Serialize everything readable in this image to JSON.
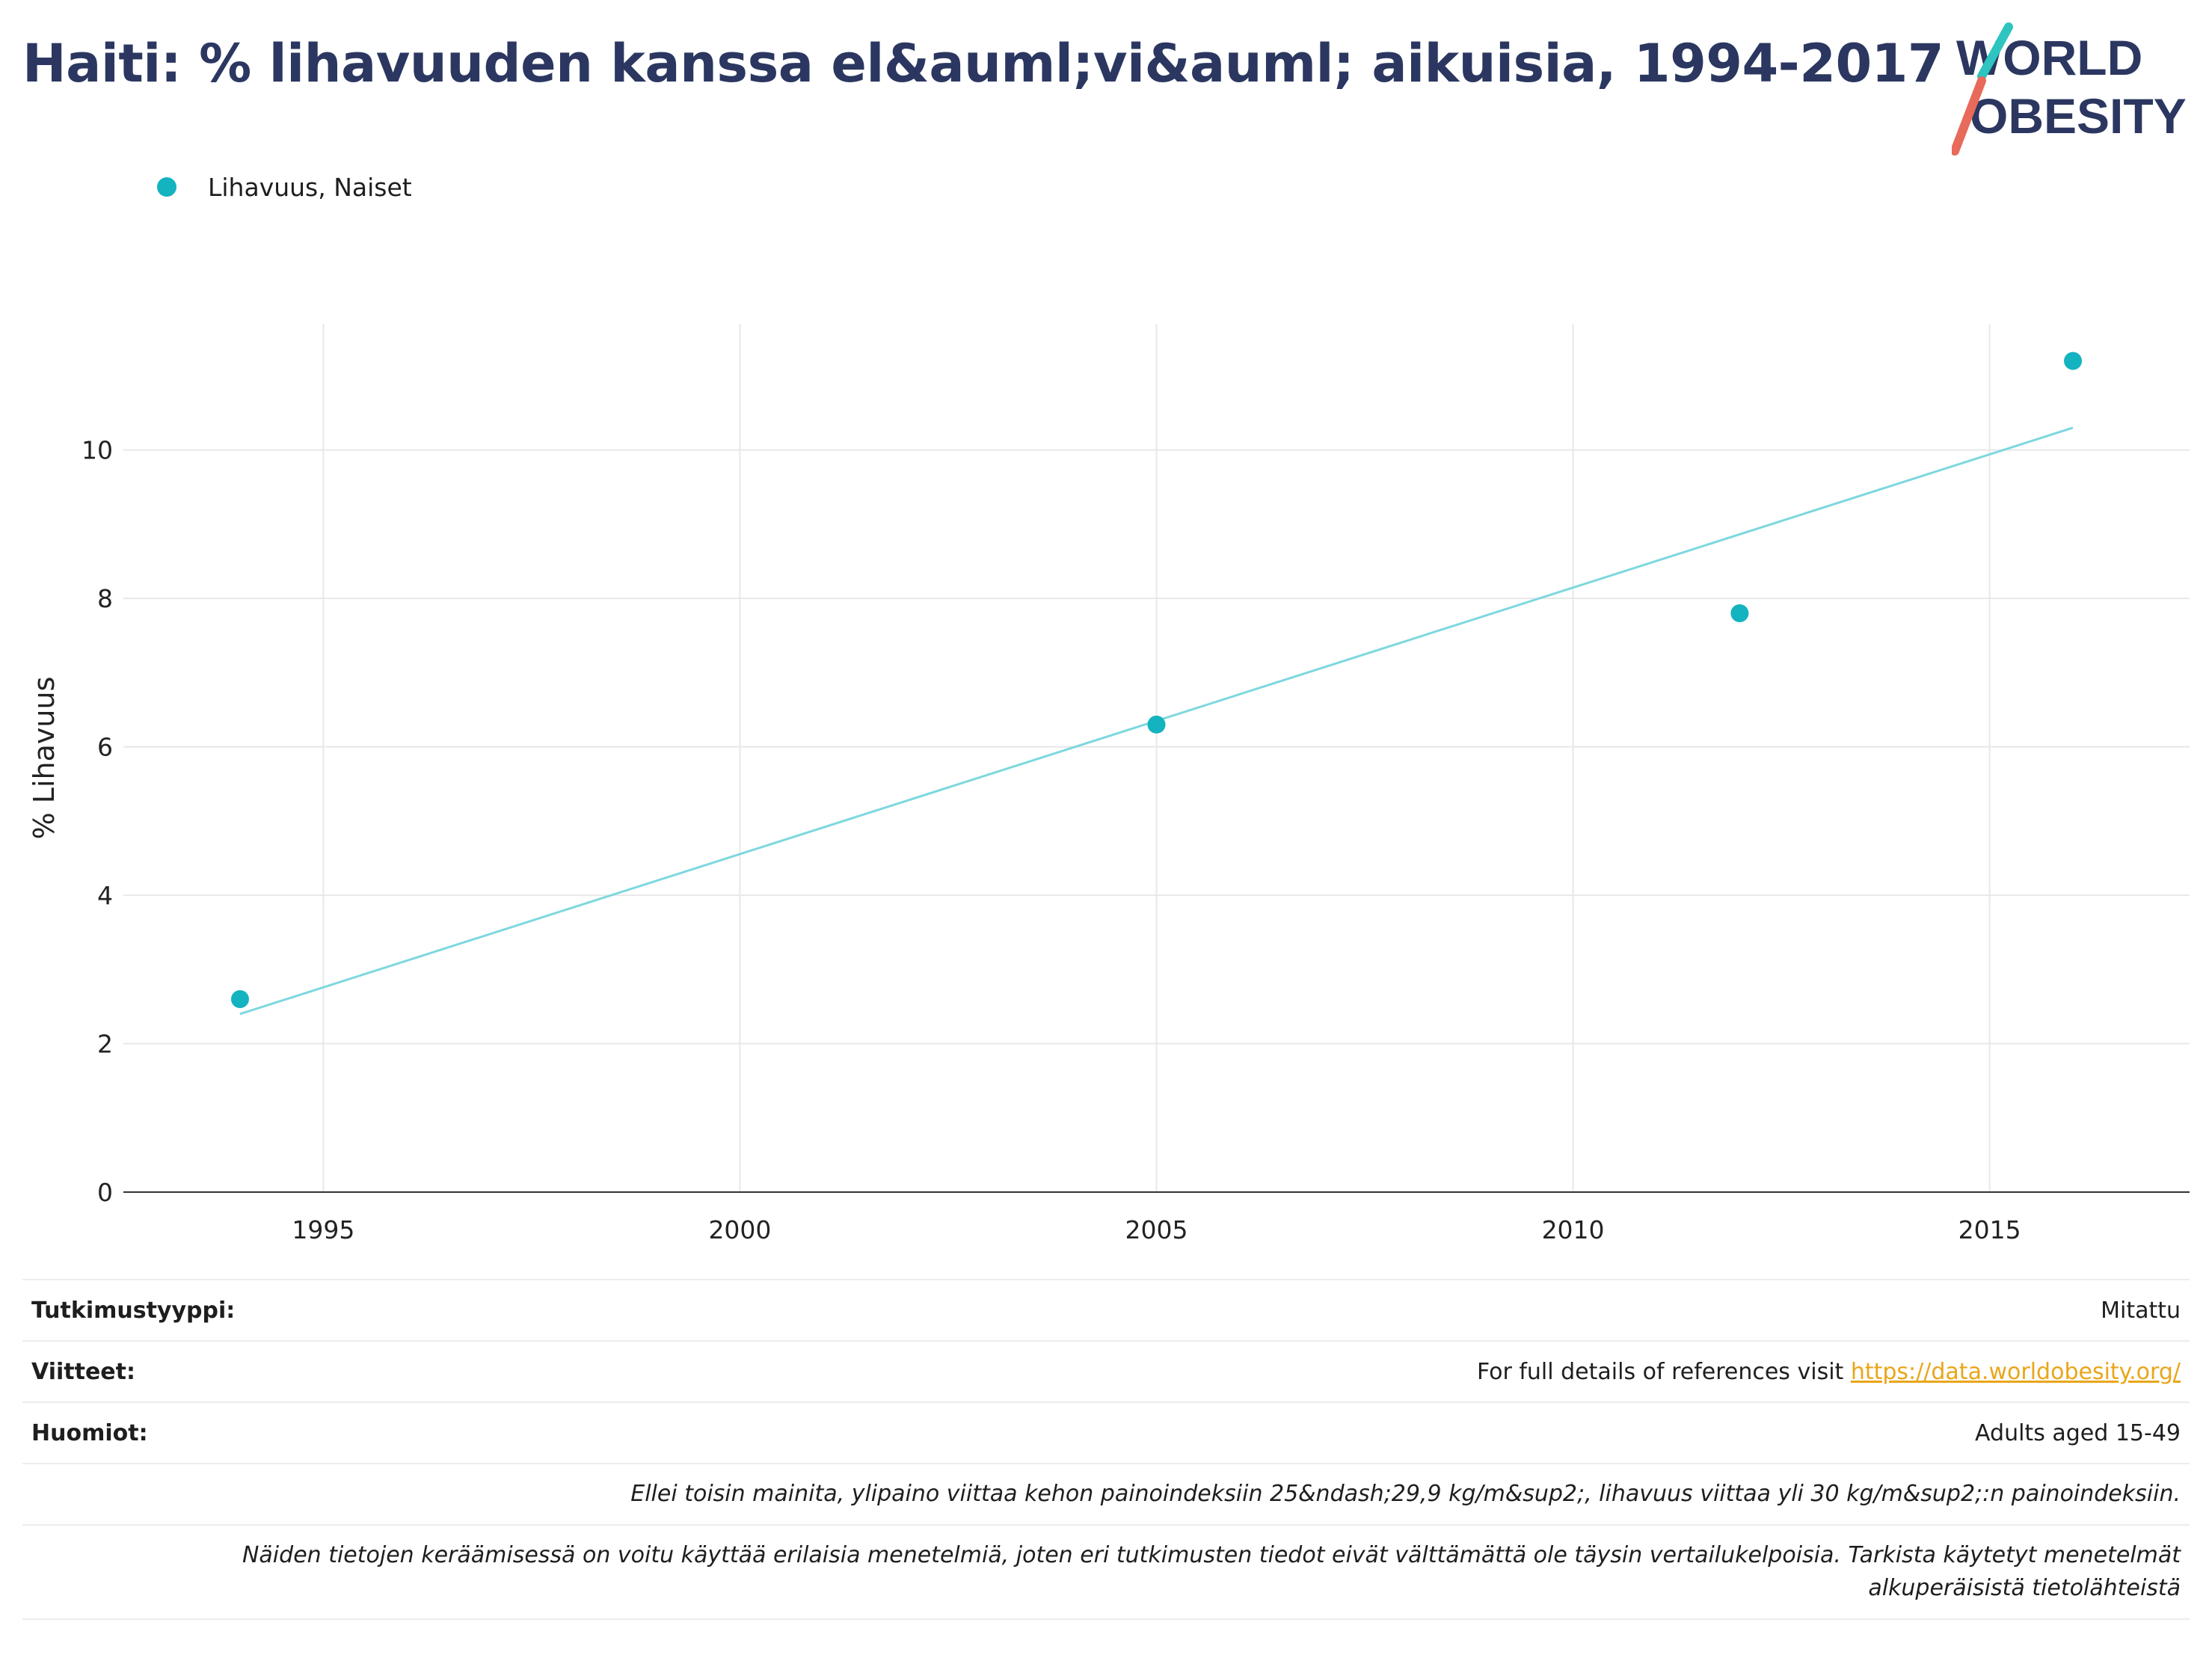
{
  "title": "Haiti: % lihavuuden kanssa el&auml;vi&auml; aikuisia, 1994-2017",
  "logo": {
    "line1": "WORLD",
    "line2": "OBESITY"
  },
  "colors": {
    "title": "#2b3760",
    "series": "#13b3c0",
    "trend": "#7dd8de",
    "link": "#e9a61a",
    "logo_teal": "#2ec4c0",
    "logo_red": "#e86a5a"
  },
  "chart_data": {
    "type": "scatter",
    "title": "Haiti: % lihavuuden kanssa el&auml;vi&auml; aikuisia, 1994-2017",
    "xlabel": "",
    "ylabel": "% Lihavuus",
    "xlim": [
      1992.6,
      2017.4
    ],
    "ylim": [
      0,
      11.7
    ],
    "x_ticks": [
      1995,
      2000,
      2005,
      2010,
      2015
    ],
    "y_ticks": [
      0,
      2,
      4,
      6,
      8,
      10
    ],
    "grid": true,
    "legend_position": "top-left",
    "series": [
      {
        "name": "Lihavuus, Naiset",
        "x": [
          1994,
          2005,
          2012,
          2016
        ],
        "y": [
          2.6,
          6.3,
          7.8,
          11.2
        ]
      }
    ],
    "trendline": {
      "x": [
        1994,
        2016
      ],
      "y": [
        2.4,
        10.3
      ]
    }
  },
  "footer": {
    "study_type_label": "Tutkimustyyppi:",
    "study_type_value": "Mitattu",
    "references_label": "Viitteet:",
    "references_text": "For full details of references visit ",
    "references_link": "https://data.worldobesity.org/",
    "notes_label": "Huomiot:",
    "notes_value": "Adults aged 15-49",
    "note1": "Ellei toisin mainita, ylipaino viittaa kehon painoindeksiin 25&ndash;29,9 kg/m&sup2;, lihavuus viittaa yli 30 kg/m&sup2;:n painoindeksiin.",
    "note2_line1": "Näiden tietojen keräämisessä on voitu käyttää erilaisia menetelmiä, joten eri tutkimusten tiedot eivät välttämättä ole täysin vertailukelpoisia. Tarkista käytetyt menetelmät",
    "note2_line2": "alkuperäisistä tietolähteistä"
  }
}
